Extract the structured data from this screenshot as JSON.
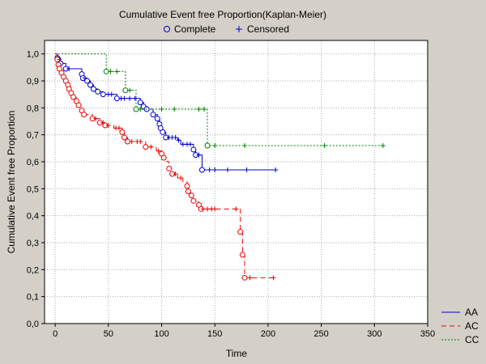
{
  "chart_data": {
    "type": "line",
    "title": "Cumulative Event free  Proportion(Kaplan-Meier)",
    "xlabel": "Time",
    "ylabel": "Cumulative Event free Proportion",
    "xlim": [
      -10,
      350
    ],
    "ylim": [
      0,
      1.05
    ],
    "x_ticks": [
      "0",
      "50",
      "100",
      "150",
      "200",
      "250",
      "300",
      "350"
    ],
    "y_ticks": [
      "0,0",
      "0,1",
      "0,2",
      "0,3",
      "0,4",
      "0,5",
      "0,6",
      "0,7",
      "0,8",
      "0,9",
      "1,0"
    ],
    "grid": true,
    "marker_legend": {
      "complete": "Complete",
      "censored": "Censored"
    },
    "series": [
      {
        "name": "AA",
        "color": "#0000cc",
        "dash": "solid",
        "steps": [
          [
            0,
            1.0
          ],
          [
            2,
            0.985
          ],
          [
            5,
            0.965
          ],
          [
            10,
            0.945
          ],
          [
            25,
            0.925
          ],
          [
            26,
            0.91
          ],
          [
            30,
            0.9
          ],
          [
            33,
            0.885
          ],
          [
            36,
            0.87
          ],
          [
            40,
            0.86
          ],
          [
            45,
            0.85
          ],
          [
            58,
            0.835
          ],
          [
            80,
            0.82
          ],
          [
            83,
            0.805
          ],
          [
            86,
            0.795
          ],
          [
            92,
            0.775
          ],
          [
            96,
            0.76
          ],
          [
            98,
            0.74
          ],
          [
            99,
            0.725
          ],
          [
            101,
            0.71
          ],
          [
            104,
            0.69
          ],
          [
            115,
            0.68
          ],
          [
            118,
            0.665
          ],
          [
            130,
            0.645
          ],
          [
            132,
            0.625
          ],
          [
            138,
            0.57
          ],
          [
            207,
            0.57
          ]
        ],
        "complete": [
          [
            2,
            0.985
          ],
          [
            5,
            0.965
          ],
          [
            10,
            0.945
          ],
          [
            25,
            0.925
          ],
          [
            26,
            0.91
          ],
          [
            30,
            0.9
          ],
          [
            33,
            0.885
          ],
          [
            36,
            0.87
          ],
          [
            40,
            0.86
          ],
          [
            45,
            0.85
          ],
          [
            58,
            0.835
          ],
          [
            80,
            0.82
          ],
          [
            83,
            0.805
          ],
          [
            86,
            0.795
          ],
          [
            92,
            0.775
          ],
          [
            96,
            0.76
          ],
          [
            98,
            0.74
          ],
          [
            99,
            0.725
          ],
          [
            101,
            0.71
          ],
          [
            104,
            0.69
          ],
          [
            130,
            0.645
          ],
          [
            132,
            0.625
          ],
          [
            138,
            0.57
          ]
        ],
        "censored": [
          [
            3,
            0.985
          ],
          [
            13,
            0.945
          ],
          [
            28,
            0.91
          ],
          [
            50,
            0.85
          ],
          [
            53,
            0.85
          ],
          [
            62,
            0.835
          ],
          [
            65,
            0.835
          ],
          [
            70,
            0.835
          ],
          [
            75,
            0.835
          ],
          [
            107,
            0.69
          ],
          [
            110,
            0.69
          ],
          [
            113,
            0.69
          ],
          [
            116,
            0.68
          ],
          [
            120,
            0.665
          ],
          [
            124,
            0.665
          ],
          [
            127,
            0.665
          ],
          [
            135,
            0.625
          ],
          [
            145,
            0.57
          ],
          [
            150,
            0.57
          ],
          [
            162,
            0.57
          ],
          [
            180,
            0.57
          ],
          [
            207,
            0.57
          ]
        ]
      },
      {
        "name": "AC",
        "color": "#ee0000",
        "dash": "6,4",
        "steps": [
          [
            0,
            1.0
          ],
          [
            2,
            0.98
          ],
          [
            3,
            0.96
          ],
          [
            4,
            0.945
          ],
          [
            6,
            0.93
          ],
          [
            8,
            0.915
          ],
          [
            10,
            0.9
          ],
          [
            12,
            0.885
          ],
          [
            13,
            0.87
          ],
          [
            15,
            0.855
          ],
          [
            17,
            0.84
          ],
          [
            20,
            0.825
          ],
          [
            22,
            0.81
          ],
          [
            25,
            0.79
          ],
          [
            27,
            0.775
          ],
          [
            35,
            0.76
          ],
          [
            42,
            0.745
          ],
          [
            47,
            0.735
          ],
          [
            55,
            0.725
          ],
          [
            63,
            0.71
          ],
          [
            65,
            0.69
          ],
          [
            68,
            0.675
          ],
          [
            85,
            0.655
          ],
          [
            95,
            0.64
          ],
          [
            100,
            0.63
          ],
          [
            102,
            0.615
          ],
          [
            105,
            0.6
          ],
          [
            107,
            0.575
          ],
          [
            110,
            0.555
          ],
          [
            115,
            0.54
          ],
          [
            120,
            0.525
          ],
          [
            124,
            0.51
          ],
          [
            125,
            0.49
          ],
          [
            128,
            0.475
          ],
          [
            130,
            0.455
          ],
          [
            135,
            0.44
          ],
          [
            137,
            0.425
          ],
          [
            174,
            0.34
          ],
          [
            176,
            0.255
          ],
          [
            178,
            0.17
          ],
          [
            207,
            0.17
          ]
        ],
        "complete": [
          [
            2,
            0.98
          ],
          [
            3,
            0.96
          ],
          [
            4,
            0.945
          ],
          [
            6,
            0.93
          ],
          [
            8,
            0.915
          ],
          [
            10,
            0.9
          ],
          [
            12,
            0.885
          ],
          [
            13,
            0.87
          ],
          [
            15,
            0.855
          ],
          [
            17,
            0.84
          ],
          [
            20,
            0.825
          ],
          [
            22,
            0.81
          ],
          [
            25,
            0.79
          ],
          [
            27,
            0.775
          ],
          [
            35,
            0.76
          ],
          [
            42,
            0.745
          ],
          [
            47,
            0.735
          ],
          [
            63,
            0.71
          ],
          [
            65,
            0.69
          ],
          [
            68,
            0.675
          ],
          [
            85,
            0.655
          ],
          [
            100,
            0.63
          ],
          [
            102,
            0.615
          ],
          [
            107,
            0.575
          ],
          [
            110,
            0.555
          ],
          [
            124,
            0.51
          ],
          [
            125,
            0.49
          ],
          [
            128,
            0.475
          ],
          [
            130,
            0.455
          ],
          [
            135,
            0.44
          ],
          [
            137,
            0.425
          ],
          [
            174,
            0.34
          ],
          [
            176,
            0.255
          ],
          [
            178,
            0.17
          ]
        ],
        "censored": [
          [
            4,
            0.98
          ],
          [
            38,
            0.76
          ],
          [
            45,
            0.745
          ],
          [
            50,
            0.735
          ],
          [
            57,
            0.725
          ],
          [
            60,
            0.725
          ],
          [
            72,
            0.675
          ],
          [
            77,
            0.675
          ],
          [
            80,
            0.675
          ],
          [
            90,
            0.655
          ],
          [
            97,
            0.64
          ],
          [
            113,
            0.555
          ],
          [
            118,
            0.54
          ],
          [
            139,
            0.425
          ],
          [
            143,
            0.425
          ],
          [
            147,
            0.425
          ],
          [
            150,
            0.425
          ],
          [
            170,
            0.425
          ],
          [
            183,
            0.17
          ],
          [
            205,
            0.17
          ]
        ]
      },
      {
        "name": "CC",
        "color": "#008000",
        "dash": "2,2",
        "steps": [
          [
            0,
            1.0
          ],
          [
            48,
            0.935
          ],
          [
            66,
            0.865
          ],
          [
            76,
            0.795
          ],
          [
            143,
            0.66
          ],
          [
            308,
            0.66
          ]
        ],
        "complete": [
          [
            48,
            0.935
          ],
          [
            66,
            0.865
          ],
          [
            76,
            0.795
          ],
          [
            143,
            0.66
          ]
        ],
        "censored": [
          [
            52,
            0.935
          ],
          [
            58,
            0.935
          ],
          [
            70,
            0.865
          ],
          [
            80,
            0.795
          ],
          [
            100,
            0.795
          ],
          [
            112,
            0.795
          ],
          [
            135,
            0.795
          ],
          [
            140,
            0.795
          ],
          [
            150,
            0.66
          ],
          [
            178,
            0.66
          ],
          [
            253,
            0.66
          ],
          [
            308,
            0.66
          ]
        ]
      }
    ]
  }
}
